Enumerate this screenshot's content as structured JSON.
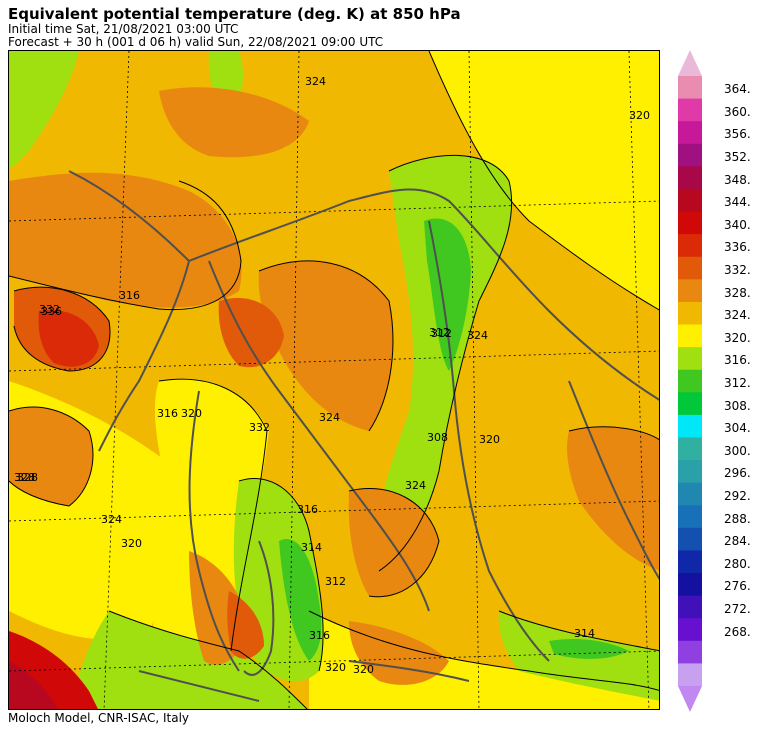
{
  "header": {
    "title": "Equivalent potential temperature (deg. K) at 850 hPa",
    "initial_time": "Initial time  Sat, 21/08/2021  03:00 UTC",
    "forecast": "Forecast  +  30 h  (001 d 06 h)  valid Sun, 22/08/2021 09:00 UTC"
  },
  "footer": {
    "credit": "Moloch Model, CNR-ISAC, Italy"
  },
  "colorbar": {
    "labels": [
      "364.",
      "360.",
      "356.",
      "352.",
      "348.",
      "344.",
      "340.",
      "336.",
      "332.",
      "328.",
      "324.",
      "320.",
      "316.",
      "312.",
      "308.",
      "304.",
      "300.",
      "296.",
      "292.",
      "288.",
      "284.",
      "280.",
      "276.",
      "272.",
      "268."
    ],
    "colors": [
      "#e98cb0",
      "#e03aa8",
      "#c8189a",
      "#a01080",
      "#a80848",
      "#b80820",
      "#d00808",
      "#da2a08",
      "#e05a0a",
      "#e88810",
      "#f0b800",
      "#fff000",
      "#a0e010",
      "#40c820",
      "#00c838",
      "#00e8f8",
      "#30b0a0",
      "#2aa0a8",
      "#2088b0",
      "#1870b8",
      "#1450b0",
      "#1028a8",
      "#1410a0",
      "#4010b8",
      "#6810d0",
      "#9040e0",
      "#c8a0f0"
    ],
    "top_triangle_color": "#eab8d8",
    "bottom_triangle_color": "#c088f0"
  },
  "map": {
    "contour_labels": [
      "324",
      "320",
      "316",
      "312",
      "314",
      "332",
      "328",
      "336",
      "312",
      "324",
      "316",
      "320",
      "314",
      "316",
      "320",
      "324",
      "328",
      "316",
      "320",
      "324",
      "312",
      "308",
      "324",
      "332",
      "320",
      "320"
    ]
  }
}
